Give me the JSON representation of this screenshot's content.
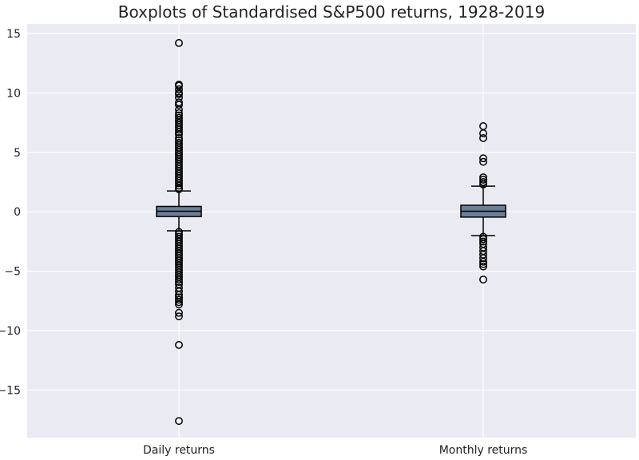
{
  "chart_data": {
    "type": "boxplot",
    "title": "Boxplots of Standardised S&P500 returns, 1928-2019",
    "xlabel": "",
    "ylabel": "",
    "ylim": [
      -19.0,
      15.8
    ],
    "yticks": [
      -15,
      -10,
      -5,
      0,
      5,
      10,
      15
    ],
    "ytick_labels": [
      "−15",
      "−10",
      "−5",
      "0",
      "5",
      "10",
      "15"
    ],
    "categories": [
      "Daily returns",
      "Monthly returns"
    ],
    "grid": true,
    "colors": {
      "background": "#eaeaf2",
      "grid": "#ffffff",
      "box_fill": "#6b7f99",
      "box_edge": "#000000",
      "median": "#000000",
      "outlier_edge": "#000000"
    },
    "boxes": [
      {
        "label": "Daily returns",
        "whisker_low": -1.6,
        "q1": -0.4,
        "median": 0.05,
        "q3": 0.45,
        "whisker_high": 1.75,
        "outliers": [
          14.2,
          10.7,
          10.6,
          10.3,
          10.0,
          9.9,
          9.6,
          9.2,
          9.0,
          8.6,
          8.3,
          8.1,
          7.9,
          7.7,
          7.5,
          7.3,
          7.1,
          6.9,
          6.7,
          6.5,
          6.2,
          6.0,
          5.8,
          5.6,
          5.4,
          5.2,
          5.0,
          4.8,
          4.6,
          4.4,
          4.2,
          4.0,
          3.8,
          3.6,
          3.4,
          3.2,
          3.0,
          2.8,
          2.6,
          2.4,
          2.2,
          2.0,
          1.9,
          -1.7,
          -1.9,
          -2.1,
          -2.3,
          -2.5,
          -2.7,
          -2.9,
          -3.1,
          -3.3,
          -3.5,
          -3.7,
          -3.9,
          -4.1,
          -4.3,
          -4.5,
          -4.7,
          -4.9,
          -5.1,
          -5.3,
          -5.5,
          -5.7,
          -5.9,
          -6.1,
          -6.4,
          -6.7,
          -7.0,
          -7.2,
          -7.4,
          -7.6,
          -7.8,
          -8.5,
          -8.8,
          -11.2,
          -17.6
        ]
      },
      {
        "label": "Monthly returns",
        "whisker_low": -2.0,
        "q1": -0.45,
        "median": 0.05,
        "q3": 0.55,
        "whisker_high": 2.15,
        "outliers": [
          7.2,
          6.6,
          6.2,
          4.5,
          4.2,
          2.9,
          2.7,
          2.5,
          2.3,
          -2.1,
          -2.3,
          -2.5,
          -2.7,
          -3.0,
          -3.3,
          -3.6,
          -3.9,
          -4.2,
          -4.4,
          -4.6,
          -5.7
        ]
      }
    ]
  }
}
